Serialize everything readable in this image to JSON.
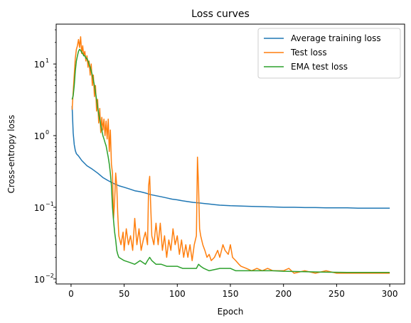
{
  "chart_data": {
    "type": "line",
    "title": "Loss curves",
    "xlabel": "Epoch",
    "ylabel": "Cross-entropy loss",
    "xlim": [
      -14,
      314
    ],
    "ylim": [
      0.0085,
      36
    ],
    "yscale": "log",
    "grid": false,
    "legend_position": "top-right",
    "x_ticks": [
      0,
      50,
      100,
      150,
      200,
      250,
      300
    ],
    "x_tick_labels": [
      "0",
      "50",
      "100",
      "150",
      "200",
      "250",
      "300"
    ],
    "y_major_ticks": [
      0.01,
      0.1,
      1,
      10
    ],
    "y_tick_labels": [
      "10",
      "10",
      "10",
      "10"
    ],
    "y_tick_exponents": [
      "−2",
      "−1",
      "0",
      "1"
    ],
    "series": [
      {
        "name": "Average training loss",
        "color": "#1f77b4",
        "points": [
          [
            1,
            2.6
          ],
          [
            2,
            1.1
          ],
          [
            3,
            0.75
          ],
          [
            4,
            0.62
          ],
          [
            5,
            0.56
          ],
          [
            7,
            0.52
          ],
          [
            10,
            0.45
          ],
          [
            15,
            0.38
          ],
          [
            20,
            0.34
          ],
          [
            25,
            0.3
          ],
          [
            30,
            0.26
          ],
          [
            35,
            0.235
          ],
          [
            40,
            0.215
          ],
          [
            45,
            0.2
          ],
          [
            50,
            0.19
          ],
          [
            55,
            0.18
          ],
          [
            60,
            0.17
          ],
          [
            65,
            0.165
          ],
          [
            70,
            0.158
          ],
          [
            75,
            0.15
          ],
          [
            80,
            0.145
          ],
          [
            85,
            0.14
          ],
          [
            90,
            0.135
          ],
          [
            95,
            0.13
          ],
          [
            100,
            0.127
          ],
          [
            105,
            0.123
          ],
          [
            110,
            0.12
          ],
          [
            115,
            0.117
          ],
          [
            120,
            0.115
          ],
          [
            125,
            0.113
          ],
          [
            130,
            0.111
          ],
          [
            135,
            0.109
          ],
          [
            140,
            0.107
          ],
          [
            150,
            0.105
          ],
          [
            160,
            0.104
          ],
          [
            170,
            0.103
          ],
          [
            180,
            0.102
          ],
          [
            190,
            0.101
          ],
          [
            200,
            0.1
          ],
          [
            210,
            0.1
          ],
          [
            220,
            0.099
          ],
          [
            230,
            0.099
          ],
          [
            240,
            0.098
          ],
          [
            250,
            0.098
          ],
          [
            260,
            0.098
          ],
          [
            270,
            0.097
          ],
          [
            280,
            0.097
          ],
          [
            290,
            0.097
          ],
          [
            300,
            0.097
          ]
        ]
      },
      {
        "name": "Test loss",
        "color": "#ff7f0e",
        "points": [
          [
            1,
            2.3
          ],
          [
            2,
            4
          ],
          [
            3,
            7
          ],
          [
            4,
            12
          ],
          [
            5,
            16
          ],
          [
            6,
            18
          ],
          [
            7,
            22
          ],
          [
            8,
            17
          ],
          [
            9,
            24
          ],
          [
            10,
            14
          ],
          [
            11,
            18
          ],
          [
            12,
            13
          ],
          [
            13,
            15
          ],
          [
            14,
            11
          ],
          [
            15,
            13
          ],
          [
            16,
            9
          ],
          [
            17,
            11
          ],
          [
            18,
            7
          ],
          [
            19,
            10
          ],
          [
            20,
            5
          ],
          [
            21,
            7
          ],
          [
            22,
            3.5
          ],
          [
            23,
            5
          ],
          [
            24,
            2.2
          ],
          [
            25,
            3.2
          ],
          [
            26,
            1.5
          ],
          [
            27,
            2.4
          ],
          [
            28,
            1.1
          ],
          [
            29,
            1.8
          ],
          [
            30,
            1.2
          ],
          [
            31,
            1.7
          ],
          [
            32,
            1.0
          ],
          [
            33,
            1.6
          ],
          [
            34,
            0.9
          ],
          [
            35,
            1.7
          ],
          [
            36,
            0.6
          ],
          [
            37,
            1.2
          ],
          [
            38,
            0.4
          ],
          [
            39,
            0.3
          ],
          [
            40,
            0.07
          ],
          [
            41,
            0.12
          ],
          [
            42,
            0.3
          ],
          [
            43,
            0.2
          ],
          [
            44,
            0.08
          ],
          [
            45,
            0.04
          ],
          [
            47,
            0.03
          ],
          [
            49,
            0.045
          ],
          [
            50,
            0.025
          ],
          [
            52,
            0.05
          ],
          [
            54,
            0.03
          ],
          [
            56,
            0.04
          ],
          [
            58,
            0.025
          ],
          [
            60,
            0.07
          ],
          [
            62,
            0.03
          ],
          [
            64,
            0.05
          ],
          [
            66,
            0.025
          ],
          [
            68,
            0.035
          ],
          [
            70,
            0.045
          ],
          [
            72,
            0.03
          ],
          [
            73,
            0.2
          ],
          [
            74,
            0.27
          ],
          [
            75,
            0.1
          ],
          [
            76,
            0.04
          ],
          [
            78,
            0.03
          ],
          [
            80,
            0.06
          ],
          [
            82,
            0.03
          ],
          [
            84,
            0.06
          ],
          [
            86,
            0.025
          ],
          [
            88,
            0.04
          ],
          [
            90,
            0.02
          ],
          [
            92,
            0.035
          ],
          [
            94,
            0.025
          ],
          [
            96,
            0.05
          ],
          [
            98,
            0.03
          ],
          [
            100,
            0.04
          ],
          [
            102,
            0.022
          ],
          [
            104,
            0.035
          ],
          [
            106,
            0.02
          ],
          [
            108,
            0.03
          ],
          [
            110,
            0.02
          ],
          [
            112,
            0.03
          ],
          [
            114,
            0.018
          ],
          [
            116,
            0.03
          ],
          [
            118,
            0.04
          ],
          [
            119,
            0.5
          ],
          [
            120,
            0.2
          ],
          [
            121,
            0.05
          ],
          [
            122,
            0.04
          ],
          [
            124,
            0.03
          ],
          [
            126,
            0.025
          ],
          [
            128,
            0.02
          ],
          [
            130,
            0.022
          ],
          [
            132,
            0.018
          ],
          [
            135,
            0.02
          ],
          [
            138,
            0.025
          ],
          [
            140,
            0.02
          ],
          [
            143,
            0.03
          ],
          [
            145,
            0.025
          ],
          [
            148,
            0.022
          ],
          [
            150,
            0.03
          ],
          [
            152,
            0.02
          ],
          [
            155,
            0.018
          ],
          [
            158,
            0.016
          ],
          [
            160,
            0.015
          ],
          [
            165,
            0.014
          ],
          [
            170,
            0.013
          ],
          [
            175,
            0.014
          ],
          [
            180,
            0.013
          ],
          [
            185,
            0.014
          ],
          [
            190,
            0.013
          ],
          [
            195,
            0.013
          ],
          [
            200,
            0.013
          ],
          [
            205,
            0.014
          ],
          [
            210,
            0.012
          ],
          [
            220,
            0.013
          ],
          [
            230,
            0.012
          ],
          [
            240,
            0.013
          ],
          [
            250,
            0.012
          ],
          [
            260,
            0.012
          ],
          [
            270,
            0.012
          ],
          [
            280,
            0.012
          ],
          [
            290,
            0.012
          ],
          [
            300,
            0.012
          ]
        ]
      },
      {
        "name": "EMA test loss",
        "color": "#2ca02c",
        "points": [
          [
            1,
            3.2
          ],
          [
            2,
            3.6
          ],
          [
            3,
            5
          ],
          [
            4,
            8
          ],
          [
            5,
            11
          ],
          [
            6,
            13
          ],
          [
            7,
            15
          ],
          [
            8,
            16
          ],
          [
            9,
            15.5
          ],
          [
            10,
            14.5
          ],
          [
            11,
            14
          ],
          [
            12,
            13
          ],
          [
            13,
            13
          ],
          [
            14,
            12
          ],
          [
            15,
            12
          ],
          [
            16,
            11
          ],
          [
            17,
            10
          ],
          [
            18,
            9
          ],
          [
            19,
            8
          ],
          [
            20,
            7
          ],
          [
            21,
            6
          ],
          [
            22,
            5
          ],
          [
            23,
            4
          ],
          [
            24,
            3.2
          ],
          [
            25,
            2.5
          ],
          [
            26,
            2
          ],
          [
            27,
            1.7
          ],
          [
            28,
            1.4
          ],
          [
            29,
            1.2
          ],
          [
            30,
            1.0
          ],
          [
            31,
            0.9
          ],
          [
            32,
            0.8
          ],
          [
            33,
            0.72
          ],
          [
            34,
            0.6
          ],
          [
            35,
            0.5
          ],
          [
            36,
            0.4
          ],
          [
            37,
            0.3
          ],
          [
            38,
            0.2
          ],
          [
            39,
            0.1
          ],
          [
            40,
            0.065
          ],
          [
            41,
            0.045
          ],
          [
            42,
            0.035
          ],
          [
            43,
            0.025
          ],
          [
            44,
            0.022
          ],
          [
            45,
            0.02
          ],
          [
            50,
            0.018
          ],
          [
            55,
            0.017
          ],
          [
            60,
            0.016
          ],
          [
            65,
            0.018
          ],
          [
            70,
            0.016
          ],
          [
            72,
            0.018
          ],
          [
            74,
            0.02
          ],
          [
            76,
            0.018
          ],
          [
            80,
            0.016
          ],
          [
            85,
            0.016
          ],
          [
            90,
            0.015
          ],
          [
            95,
            0.015
          ],
          [
            100,
            0.015
          ],
          [
            105,
            0.014
          ],
          [
            110,
            0.014
          ],
          [
            115,
            0.014
          ],
          [
            118,
            0.014
          ],
          [
            120,
            0.016
          ],
          [
            122,
            0.015
          ],
          [
            125,
            0.014
          ],
          [
            130,
            0.013
          ],
          [
            140,
            0.014
          ],
          [
            150,
            0.014
          ],
          [
            155,
            0.013
          ],
          [
            160,
            0.013
          ],
          [
            170,
            0.013
          ],
          [
            180,
            0.013
          ],
          [
            190,
            0.013
          ],
          [
            200,
            0.0128
          ],
          [
            220,
            0.0126
          ],
          [
            240,
            0.0124
          ],
          [
            260,
            0.0123
          ],
          [
            280,
            0.0123
          ],
          [
            300,
            0.0123
          ]
        ]
      }
    ]
  }
}
